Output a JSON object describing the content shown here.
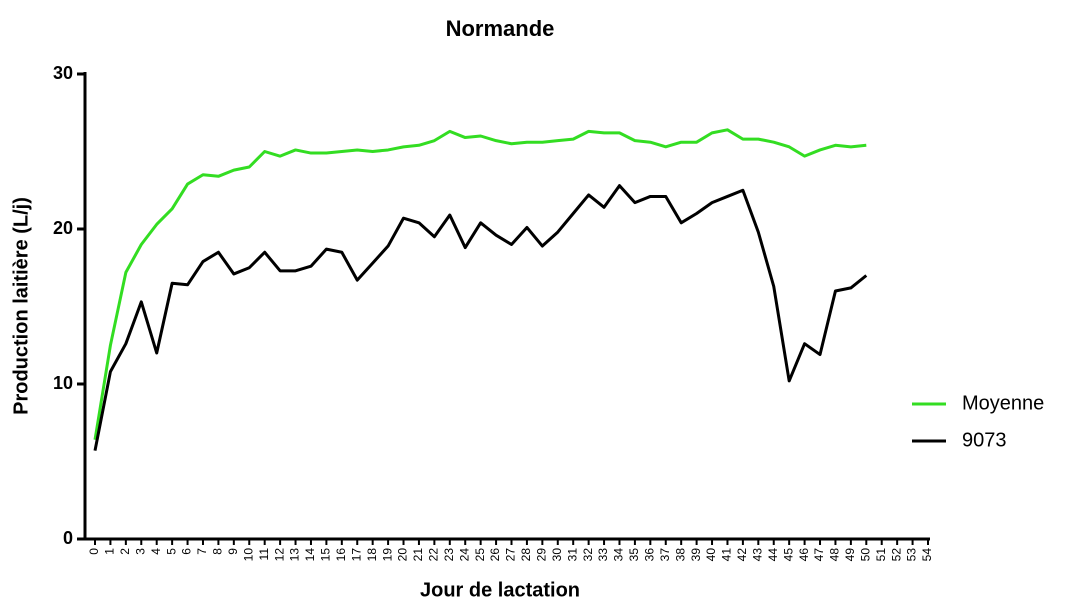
{
  "chart_data": {
    "type": "line",
    "title": "Normande",
    "x_label": "Jour de lactation",
    "y_label": "Production laitière (L/j)",
    "x": [
      0,
      1,
      2,
      3,
      4,
      5,
      6,
      7,
      8,
      9,
      10,
      11,
      12,
      13,
      14,
      15,
      16,
      17,
      18,
      19,
      20,
      21,
      22,
      23,
      24,
      25,
      26,
      27,
      28,
      29,
      30,
      31,
      32,
      33,
      34,
      35,
      36,
      37,
      38,
      39,
      40,
      41,
      42,
      43,
      44,
      45,
      46,
      47,
      48,
      49,
      50
    ],
    "series": [
      {
        "name": "Moyenne",
        "color": "#33dd22",
        "values": [
          6.4,
          12.5,
          17.2,
          19,
          20.3,
          21.3,
          22.9,
          23.5,
          23.4,
          23.8,
          24,
          25,
          24.7,
          25.1,
          24.9,
          24.9,
          25,
          25.1,
          25,
          25.1,
          25.3,
          25.4,
          25.7,
          26.3,
          25.9,
          26,
          25.7,
          25.5,
          25.6,
          25.6,
          25.7,
          25.8,
          26.3,
          26.2,
          26.2,
          25.7,
          25.6,
          25.3,
          25.6,
          25.6,
          26.2,
          26.4,
          25.8,
          25.8,
          25.6,
          25.3,
          24.7,
          25.1,
          25.4,
          25.3,
          25.4
        ]
      },
      {
        "name": "9073",
        "color": "#000000",
        "values": [
          5.7,
          10.8,
          12.6,
          15.3,
          12,
          16.5,
          16.4,
          17.9,
          18.5,
          17.1,
          17.5,
          18.5,
          17.3,
          17.3,
          17.6,
          18.7,
          18.5,
          16.7,
          17.8,
          18.9,
          20.7,
          20.4,
          19.5,
          20.9,
          18.8,
          20.4,
          19.6,
          19,
          20.1,
          18.9,
          19.8,
          21,
          22.2,
          21.4,
          22.8,
          21.7,
          22.1,
          22.1,
          20.4,
          21,
          21.7,
          22.1,
          22.5,
          19.8,
          16.3,
          10.2,
          12.6,
          11.9,
          16,
          16.2,
          17
        ]
      }
    ],
    "xlim": [
      0,
      54
    ],
    "xticks": [
      0,
      1,
      2,
      3,
      4,
      5,
      6,
      7,
      8,
      9,
      10,
      11,
      12,
      13,
      14,
      15,
      16,
      17,
      18,
      19,
      20,
      21,
      22,
      23,
      24,
      25,
      26,
      27,
      28,
      29,
      30,
      31,
      32,
      33,
      34,
      35,
      36,
      37,
      38,
      39,
      40,
      41,
      42,
      43,
      44,
      45,
      46,
      47,
      48,
      49,
      50,
      51,
      52,
      53,
      54
    ],
    "ylim": [
      0,
      30
    ],
    "yticks": [
      0,
      10,
      20,
      30
    ],
    "legend": "right",
    "grid": false
  }
}
